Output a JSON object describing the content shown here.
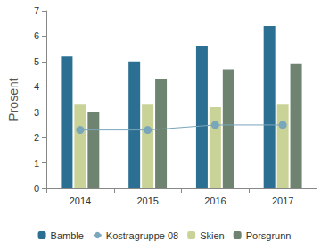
{
  "chart_data": {
    "type": "bar",
    "y_label": "Prosent",
    "categories": [
      "2014",
      "2015",
      "2016",
      "2017"
    ],
    "series": [
      {
        "name": "Bamble",
        "color": "#2b6f92",
        "values": [
          5.2,
          5.0,
          5.6,
          6.4
        ]
      },
      {
        "name": "Kostragruppe 08",
        "type": "line",
        "marker": "circle",
        "color": "#7aa6bb",
        "values": [
          2.3,
          2.3,
          2.5,
          2.5
        ]
      },
      {
        "name": "Skien",
        "color": "#c9d297",
        "values": [
          3.3,
          3.3,
          3.2,
          3.3
        ]
      },
      {
        "name": "Porsgrunn",
        "color": "#6e8470",
        "values": [
          3.0,
          4.3,
          4.7,
          4.9
        ]
      }
    ],
    "ylim": [
      0,
      7
    ],
    "yticks": [
      0,
      1,
      2,
      3,
      4,
      5,
      6,
      7
    ],
    "grid": false,
    "legend": "bottom"
  }
}
